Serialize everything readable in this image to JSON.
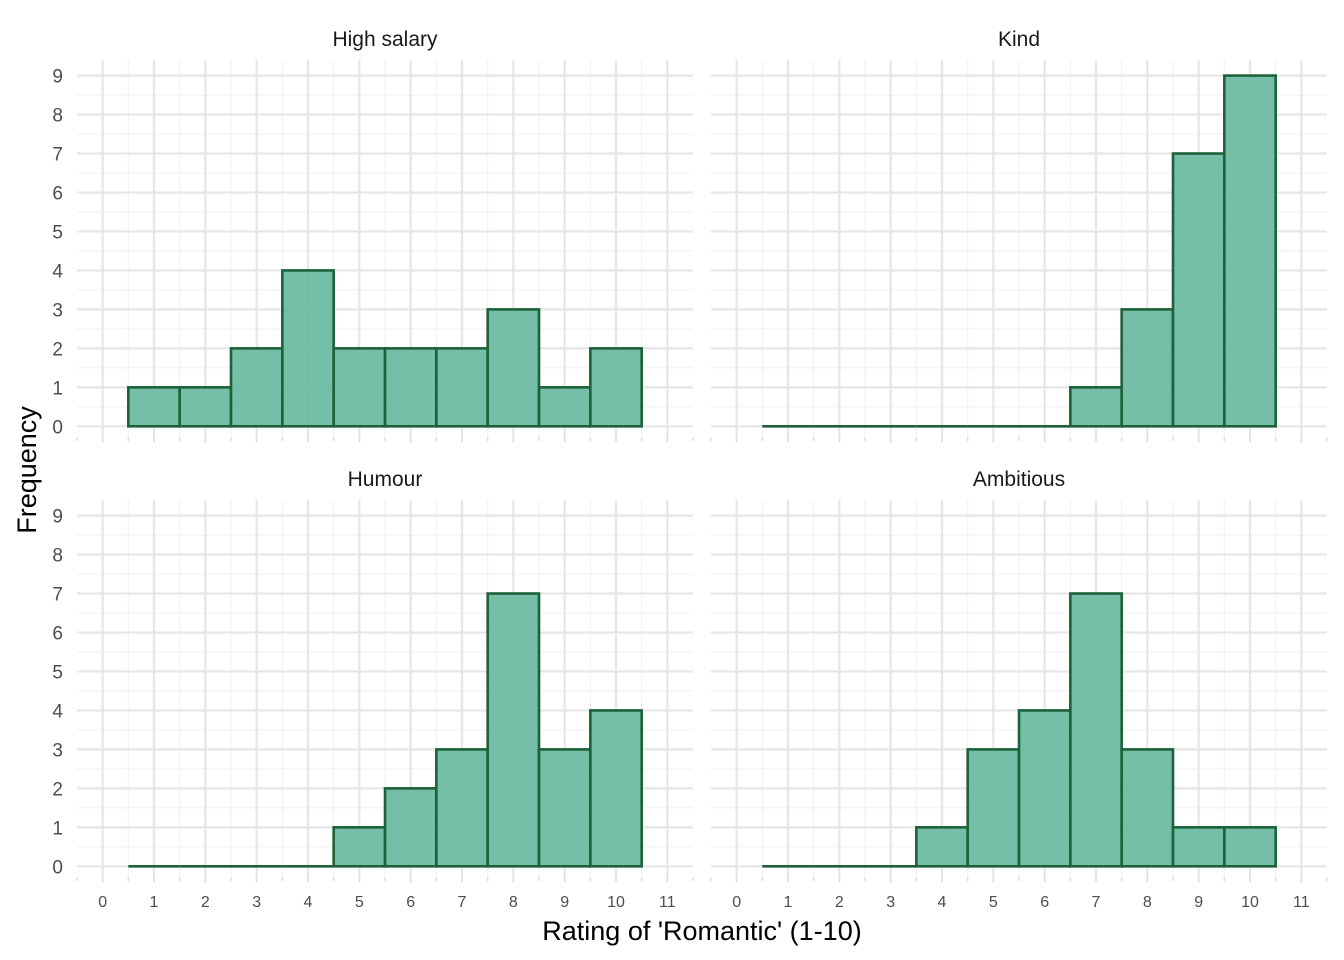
{
  "chart_data": {
    "type": "bar",
    "subtype": "faceted-histogram",
    "xlabel": "Rating of 'Romantic' (1-10)",
    "ylabel": "Frequency",
    "x_ticks": [
      0,
      1,
      2,
      3,
      4,
      5,
      6,
      7,
      8,
      9,
      10,
      11
    ],
    "y_ticks": [
      0,
      1,
      2,
      3,
      4,
      5,
      6,
      7,
      8,
      9
    ],
    "xlim": [
      -0.5,
      11.5
    ],
    "ylim": [
      -0.3,
      9.4
    ],
    "bins": [
      1,
      2,
      3,
      4,
      5,
      6,
      7,
      8,
      9,
      10
    ],
    "bin_width": 1,
    "grid": true,
    "colors": {
      "fill": "#66b8a0",
      "outline": "#1c6137"
    },
    "facets": [
      {
        "title": "High salary",
        "values": [
          1,
          1,
          2,
          4,
          2,
          2,
          2,
          3,
          1,
          2
        ]
      },
      {
        "title": "Kind",
        "values": [
          0,
          0,
          0,
          0,
          0,
          0,
          1,
          3,
          7,
          9
        ]
      },
      {
        "title": "Humour",
        "values": [
          0,
          0,
          0,
          0,
          1,
          2,
          3,
          7,
          3,
          4
        ]
      },
      {
        "title": "Ambitious",
        "values": [
          0,
          0,
          0,
          1,
          3,
          4,
          7,
          3,
          1,
          1
        ]
      }
    ]
  }
}
